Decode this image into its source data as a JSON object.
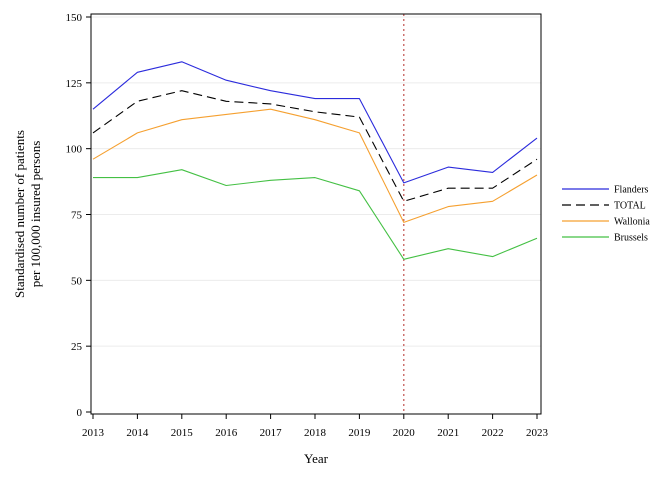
{
  "chart_data": {
    "type": "line",
    "title": "",
    "xlabel": "Year",
    "ylabel_lines": [
      "Standardised number of patients",
      "per 100,000 insured persons"
    ],
    "x": [
      2013,
      2014,
      2015,
      2016,
      2017,
      2018,
      2019,
      2020,
      2021,
      2022,
      2023
    ],
    "xlim": [
      2013,
      2023
    ],
    "ylim": [
      0,
      150
    ],
    "yticks": [
      0,
      25,
      50,
      75,
      100,
      125,
      150
    ],
    "grid": "horizontal",
    "legend_position": "right",
    "reference_line": {
      "x": 2020,
      "color": "#c0504d",
      "style": "dotted"
    },
    "series": [
      {
        "name": "Flanders",
        "color": "#2b2bdc",
        "dash": "solid",
        "values": [
          115,
          129,
          133,
          126,
          122,
          119,
          119,
          87,
          93,
          91,
          104
        ]
      },
      {
        "name": "TOTAL",
        "color": "#000000",
        "dash": "dashed",
        "values": [
          106,
          118,
          122,
          118,
          117,
          114,
          112,
          80,
          85,
          85,
          96
        ]
      },
      {
        "name": "Wallonia",
        "color": "#f5a030",
        "dash": "solid",
        "values": [
          96,
          106,
          111,
          113,
          115,
          111,
          106,
          72,
          78,
          80,
          90
        ]
      },
      {
        "name": "Brussels",
        "color": "#44c044",
        "dash": "solid",
        "values": [
          89,
          89,
          92,
          86,
          88,
          89,
          84,
          58,
          62,
          59,
          66
        ]
      }
    ]
  }
}
